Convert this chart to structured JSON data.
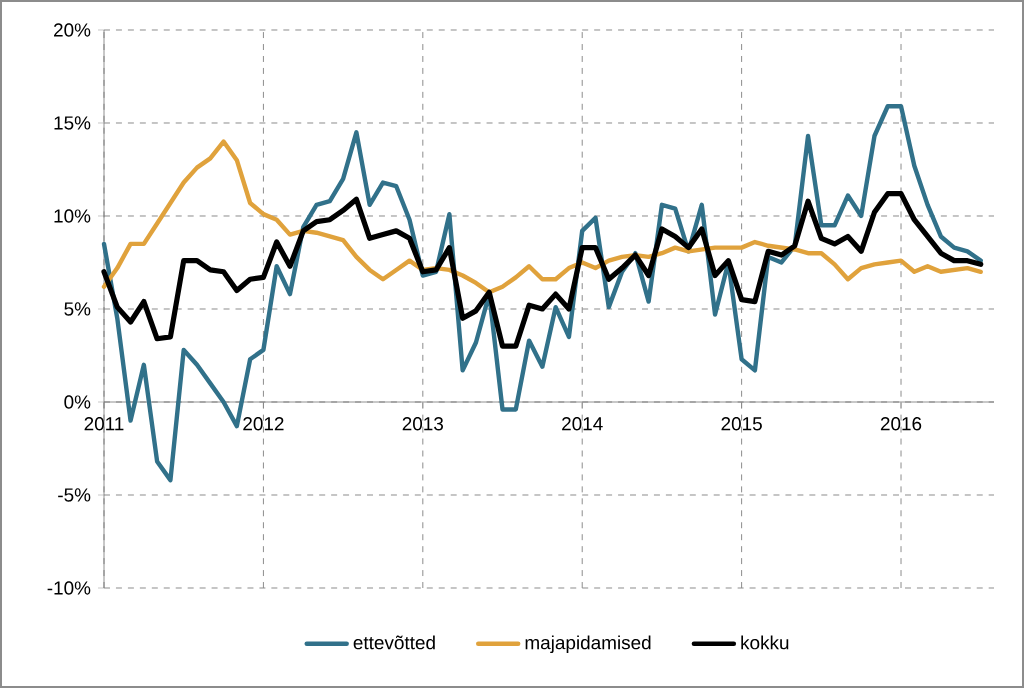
{
  "chart_data": {
    "type": "line",
    "x": [
      "2011-01",
      "2011-02",
      "2011-03",
      "2011-04",
      "2011-05",
      "2011-06",
      "2011-07",
      "2011-08",
      "2011-09",
      "2011-10",
      "2011-11",
      "2011-12",
      "2012-01",
      "2012-02",
      "2012-03",
      "2012-04",
      "2012-05",
      "2012-06",
      "2012-07",
      "2012-08",
      "2012-09",
      "2012-10",
      "2012-11",
      "2012-12",
      "2013-01",
      "2013-02",
      "2013-03",
      "2013-04",
      "2013-05",
      "2013-06",
      "2013-07",
      "2013-08",
      "2013-09",
      "2013-10",
      "2013-11",
      "2013-12",
      "2014-01",
      "2014-02",
      "2014-03",
      "2014-04",
      "2014-05",
      "2014-06",
      "2014-07",
      "2014-08",
      "2014-09",
      "2014-10",
      "2014-11",
      "2014-12",
      "2015-01",
      "2015-02",
      "2015-03",
      "2015-04",
      "2015-05",
      "2015-06",
      "2015-07",
      "2015-08",
      "2015-09",
      "2015-10",
      "2015-11",
      "2015-12",
      "2016-01",
      "2016-02",
      "2016-03",
      "2016-04",
      "2016-05",
      "2016-06",
      "2016-07"
    ],
    "series": [
      {
        "name": "ettevõtted",
        "color": "#31718a",
        "values": [
          8.5,
          4.5,
          -1.0,
          2.0,
          -3.2,
          -4.2,
          2.8,
          2.0,
          1.0,
          0.0,
          -1.3,
          2.3,
          2.8,
          7.3,
          5.8,
          9.4,
          10.6,
          10.8,
          12.0,
          14.5,
          10.6,
          11.8,
          11.6,
          9.8,
          6.8,
          7.0,
          10.1,
          1.7,
          3.2,
          5.8,
          -0.4,
          -0.4,
          3.3,
          1.9,
          5.1,
          3.5,
          9.2,
          9.9,
          5.1,
          7.0,
          8.0,
          5.4,
          10.6,
          10.4,
          8.1,
          10.6,
          4.7,
          7.5,
          2.3,
          1.7,
          7.8,
          7.5,
          8.4,
          14.3,
          9.5,
          9.5,
          11.1,
          10.0,
          14.3,
          15.9,
          15.9,
          12.7,
          10.6,
          8.9,
          8.3,
          8.1,
          7.6
        ]
      },
      {
        "name": "majapidamised",
        "color": "#e0a23c",
        "values": [
          6.2,
          7.2,
          8.5,
          8.5,
          9.6,
          10.7,
          11.8,
          12.6,
          13.1,
          14.0,
          13.0,
          10.7,
          10.1,
          9.8,
          9.0,
          9.2,
          9.1,
          8.9,
          8.7,
          7.8,
          7.1,
          6.6,
          7.1,
          7.6,
          7.1,
          7.2,
          7.1,
          6.8,
          6.4,
          5.9,
          6.2,
          6.7,
          7.3,
          6.6,
          6.6,
          7.2,
          7.5,
          7.2,
          7.6,
          7.8,
          7.9,
          7.8,
          8.0,
          8.3,
          8.1,
          8.2,
          8.3,
          8.3,
          8.3,
          8.6,
          8.4,
          8.3,
          8.2,
          8.0,
          8.0,
          7.4,
          6.6,
          7.2,
          7.4,
          7.5,
          7.6,
          7.0,
          7.3,
          7.0,
          7.1,
          7.2,
          7.0
        ]
      },
      {
        "name": "kokku",
        "color": "#000000",
        "values": [
          7.0,
          5.1,
          4.3,
          5.4,
          3.4,
          3.5,
          7.6,
          7.6,
          7.1,
          7.0,
          6.0,
          6.6,
          6.7,
          8.6,
          7.3,
          9.2,
          9.7,
          9.8,
          10.3,
          10.9,
          8.8,
          9.0,
          9.2,
          8.8,
          7.0,
          7.1,
          8.3,
          4.5,
          4.9,
          5.9,
          3.0,
          3.0,
          5.2,
          5.0,
          5.8,
          5.0,
          8.3,
          8.3,
          6.6,
          7.2,
          7.9,
          6.8,
          9.3,
          8.9,
          8.3,
          9.3,
          6.8,
          7.6,
          5.5,
          5.4,
          8.1,
          7.9,
          8.4,
          10.8,
          8.8,
          8.5,
          8.9,
          8.1,
          10.2,
          11.2,
          11.2,
          9.8,
          8.9,
          8.0,
          7.6,
          7.6,
          7.4
        ]
      }
    ],
    "xlim": [
      "2011-01",
      "2016-08"
    ],
    "xticks": [
      {
        "value": "2011-01",
        "label": "2011"
      },
      {
        "value": "2012-01",
        "label": "2012"
      },
      {
        "value": "2013-01",
        "label": "2013"
      },
      {
        "value": "2014-01",
        "label": "2014"
      },
      {
        "value": "2015-01",
        "label": "2015"
      },
      {
        "value": "2016-01",
        "label": "2016"
      }
    ],
    "ylim": [
      -10,
      20
    ],
    "yticks": [
      {
        "value": -10,
        "label": "-10%"
      },
      {
        "value": -5,
        "label": "-5%"
      },
      {
        "value": 0,
        "label": "0%"
      },
      {
        "value": 5,
        "label": "5%"
      },
      {
        "value": 10,
        "label": "10%"
      },
      {
        "value": 15,
        "label": "15%"
      },
      {
        "value": 20,
        "label": "20%"
      }
    ],
    "grid": true,
    "legend": "bottom",
    "marker": "none",
    "line_style": "solid"
  }
}
